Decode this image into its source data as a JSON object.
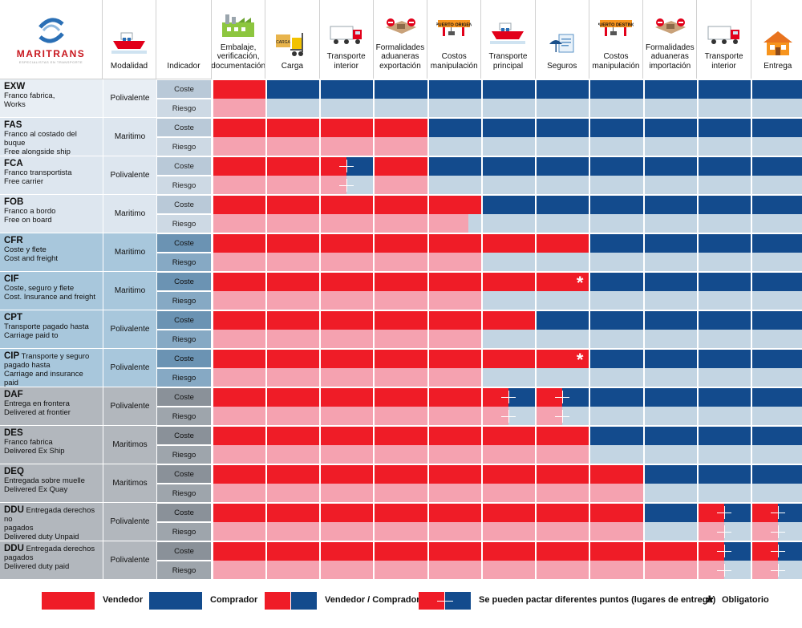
{
  "logo": {
    "name": "MARITRANS",
    "tagline": "ESPECIALISTAS EN TRANSPORTE"
  },
  "colors": {
    "vendedor": "#ef1c27",
    "comprador": "#134b8d",
    "vendedor_risk": "#f5a2b0",
    "comprador_risk": "#c3d5e3",
    "white": "#ffffff"
  },
  "header": {
    "modalidad": "Modalidad",
    "indicador": "Indicador",
    "columns": [
      {
        "label": "Embalaje, verificación, documentación",
        "icon": "factory-icon"
      },
      {
        "label": "Carga",
        "icon": "forklift-carga-icon",
        "badge": "CARGA"
      },
      {
        "label": "Transporte interior",
        "icon": "truck-icon"
      },
      {
        "label": "Formalidades aduaneras exportación",
        "icon": "customs-stop-icon"
      },
      {
        "label": "Costos manipulación",
        "icon": "port-crane-icon",
        "badge": "PUERTO ORIGEN"
      },
      {
        "label": "Transporte principal",
        "icon": "ship-icon"
      },
      {
        "label": "Seguros",
        "icon": "insurance-icon"
      },
      {
        "label": "Costos manipulación",
        "icon": "port-crane-icon",
        "badge": "PUERTO DESTINO"
      },
      {
        "label": "Formalidades aduaneras importación",
        "icon": "customs-stop-icon"
      },
      {
        "label": "Transporte interior",
        "icon": "truck-icon"
      },
      {
        "label": "Entrega",
        "icon": "house-icon"
      }
    ]
  },
  "indicator_labels": {
    "cost": "Coste",
    "risk": "Riesgo"
  },
  "terms": [
    {
      "code": "EXW",
      "inline": "",
      "lines": [
        "Franco fabrica,",
        "Works"
      ],
      "modalidad": "Polivalente",
      "bg": "#e8eef4",
      "cost": {
        "red": 1
      },
      "risk": {
        "red": 1
      }
    },
    {
      "code": "FAS",
      "inline": "",
      "lines": [
        "Franco al costado del buque",
        "Free alongside ship"
      ],
      "modalidad": "Maritimo",
      "bg": "#dde6ef",
      "cost": {
        "red": 4
      },
      "risk": {
        "red": 4
      }
    },
    {
      "code": "FCA",
      "inline": "",
      "lines": [
        "Franco transportista",
        "Free carrier"
      ],
      "modalidad": "Polivalente",
      "bg": "#dde6ef",
      "cost": {
        "red": 4,
        "split": [
          2
        ]
      },
      "risk": {
        "red": 4,
        "split": [
          2
        ]
      }
    },
    {
      "code": "FOB",
      "inline": "",
      "lines": [
        "Franco a bordo",
        "Free on board"
      ],
      "modalidad": "Maritimo",
      "bg": "#dde6ef",
      "cost": {
        "red": 5
      },
      "risk": {
        "red": 4.75
      }
    },
    {
      "code": "CFR",
      "inline": "",
      "lines": [
        "Coste y flete",
        "Cost and freight"
      ],
      "modalidad": "Maritimo",
      "bg": "#a8c7dc",
      "cost": {
        "red": 7
      },
      "risk": {
        "red": 5
      }
    },
    {
      "code": "CIF",
      "inline": "",
      "lines": [
        "Coste, seguro y flete",
        "Cost. Insurance and freight"
      ],
      "modalidad": "Maritimo",
      "bg": "#a8c7dc",
      "cost": {
        "red": 7,
        "star": 6
      },
      "risk": {
        "red": 5
      }
    },
    {
      "code": "CPT",
      "inline": "",
      "lines": [
        "Transporte pagado hasta",
        "Carriage paid to"
      ],
      "modalidad": "Polivalente",
      "bg": "#a8c7dc",
      "cost": {
        "red": 6
      },
      "risk": {
        "red": 5
      }
    },
    {
      "code": "CIP",
      "inline": "Transporte y seguro",
      "lines": [
        "pagado hasta",
        "Carriage and insurance paid"
      ],
      "modalidad": "Polivalente",
      "bg": "#a8c7dc",
      "cost": {
        "red": 7,
        "star": 6
      },
      "risk": {
        "red": 5
      }
    },
    {
      "code": "DAF",
      "inline": "",
      "lines": [
        "Entrega en frontera",
        "Delivered at frontier"
      ],
      "modalidad": "Polivalente",
      "bg": "#b2b7bd",
      "cost": {
        "red": 7,
        "split": [
          5,
          6
        ]
      },
      "risk": {
        "red": 7,
        "split": [
          5,
          6
        ]
      }
    },
    {
      "code": "DES",
      "inline": "",
      "lines": [
        "Franco fabrica",
        "Delivered Ex Ship"
      ],
      "modalidad": "Maritimos",
      "bg": "#b2b7bd",
      "cost": {
        "red": 7
      },
      "risk": {
        "red": 7
      }
    },
    {
      "code": "DEQ",
      "inline": "",
      "lines": [
        "Entregada sobre muelle",
        "Delivered Ex Quay"
      ],
      "modalidad": "Maritimos",
      "bg": "#b2b7bd",
      "cost": {
        "red": 8
      },
      "risk": {
        "red": 8
      }
    },
    {
      "code": "DDU",
      "inline": "Entregada derechos no",
      "lines": [
        "pagados",
        "Delivered duty Unpaid"
      ],
      "modalidad": "Polivalente",
      "bg": "#b2b7bd",
      "cost": {
        "red": 11,
        "split": [
          9,
          10
        ],
        "blue": [
          8
        ]
      },
      "risk": {
        "red": 11,
        "split": [
          9,
          10
        ],
        "blue": [
          8
        ]
      }
    },
    {
      "code": "DDU",
      "inline": "Entregada derechos",
      "lines": [
        "pagados",
        "Delivered duty paid"
      ],
      "modalidad": "Polivalente",
      "bg": "#b2b7bd",
      "cost": {
        "red": 11,
        "split": [
          9,
          10
        ]
      },
      "risk": {
        "red": 11,
        "split": [
          9,
          10
        ]
      }
    }
  ],
  "legend": {
    "vendedor": "Vendedor",
    "comprador": "Comprador",
    "vendedor_comprador": "Vendedor / Comprador",
    "puntos": "Se pueden pactar diferentes puntos (lugares de entrega)",
    "obligatorio": "Obligatorio",
    "star": "*"
  }
}
